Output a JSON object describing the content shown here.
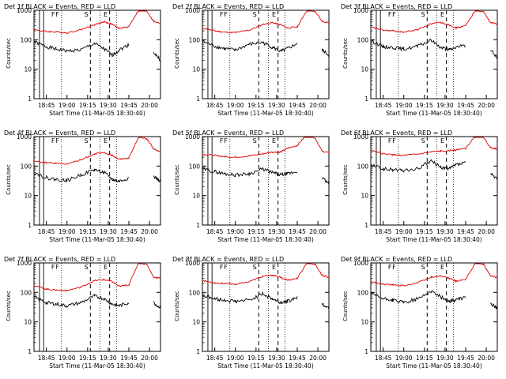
{
  "colors": {
    "events": "#000000",
    "lld": "#e00000",
    "axes": "#000000",
    "background": "#ffffff"
  },
  "shared": {
    "xlabel": "Start Time (11-Mar-05 18:30:40)",
    "ylabel": "Counts/sec",
    "x_ticks": [
      "18:45",
      "19:00",
      "19:15",
      "19:30",
      "19:45",
      "20:00"
    ],
    "y_ticks": [
      "1",
      "10",
      "100",
      "1000"
    ],
    "ylim": [
      1,
      1200
    ],
    "y_scale": "log",
    "time_range": [
      "18:36",
      "20:08"
    ],
    "event_markers": [
      "F",
      "F",
      "S",
      "E"
    ]
  },
  "chart_data": [
    {
      "type": "line",
      "title": "Det 1f BLACK = Events, RED = LLD",
      "x": [
        "18:36",
        "18:45",
        "18:52",
        "19:00",
        "19:10",
        "19:20",
        "19:27",
        "19:33",
        "19:38",
        "19:45",
        "19:52",
        "19:58",
        "20:03",
        "20:08"
      ],
      "series": [
        {
          "name": "Events",
          "values": [
            85,
            58,
            48,
            42,
            45,
            75,
            48,
            30,
            45,
            68,
            null,
            null,
            38,
            20
          ]
        },
        {
          "name": "LLD",
          "values": [
            220,
            190,
            185,
            170,
            220,
            320,
            410,
            330,
            240,
            280,
            1000,
            950,
            420,
            360
          ]
        }
      ]
    },
    {
      "type": "line",
      "title": "Det 2f BLACK = Events, RED = LLD",
      "x": [
        "18:36",
        "18:45",
        "18:52",
        "19:00",
        "19:10",
        "19:20",
        "19:27",
        "19:33",
        "19:38",
        "19:45",
        "19:52",
        "19:58",
        "20:03",
        "20:08"
      ],
      "series": [
        {
          "name": "Events",
          "values": [
            90,
            60,
            50,
            45,
            70,
            80,
            55,
            40,
            50,
            75,
            null,
            null,
            45,
            30
          ]
        },
        {
          "name": "LLD",
          "values": [
            250,
            200,
            180,
            175,
            210,
            330,
            380,
            320,
            250,
            270,
            1000,
            900,
            420,
            380
          ]
        }
      ]
    },
    {
      "type": "line",
      "title": "Det 3f BLACK = Events, RED = LLD",
      "x": [
        "18:36",
        "18:45",
        "18:52",
        "19:00",
        "19:10",
        "19:20",
        "19:27",
        "19:33",
        "19:38",
        "19:45",
        "19:52",
        "19:58",
        "20:03",
        "20:08"
      ],
      "series": [
        {
          "name": "Events",
          "values": [
            95,
            58,
            55,
            48,
            60,
            95,
            55,
            45,
            55,
            65,
            null,
            null,
            45,
            25
          ]
        },
        {
          "name": "LLD",
          "values": [
            270,
            210,
            200,
            180,
            220,
            350,
            380,
            320,
            250,
            300,
            1000,
            900,
            380,
            340
          ]
        }
      ]
    },
    {
      "type": "line",
      "title": "Det 4f BLACK = Events, RED = LLD",
      "x": [
        "18:36",
        "18:45",
        "18:52",
        "19:00",
        "19:10",
        "19:20",
        "19:27",
        "19:33",
        "19:38",
        "19:45",
        "19:52",
        "19:58",
        "20:03",
        "20:08"
      ],
      "series": [
        {
          "name": "Events",
          "values": [
            60,
            40,
            35,
            32,
            50,
            75,
            60,
            35,
            30,
            40,
            null,
            null,
            45,
            30
          ]
        },
        {
          "name": "LLD",
          "values": [
            150,
            130,
            125,
            120,
            160,
            260,
            280,
            230,
            170,
            190,
            950,
            850,
            380,
            300
          ]
        }
      ]
    },
    {
      "type": "line",
      "title": "Det 5f BLACK = Events, RED = LLD",
      "x": [
        "18:36",
        "18:45",
        "18:52",
        "19:00",
        "19:10",
        "19:20",
        "19:27",
        "19:33",
        "19:38",
        "19:45",
        "19:52",
        "19:58",
        "20:03",
        "20:08"
      ],
      "series": [
        {
          "name": "Events",
          "values": [
            80,
            65,
            55,
            50,
            55,
            80,
            60,
            50,
            55,
            65,
            null,
            null,
            40,
            25
          ]
        },
        {
          "name": "LLD",
          "values": [
            250,
            230,
            210,
            200,
            220,
            260,
            300,
            300,
            400,
            500,
            1200,
            900,
            320,
            280
          ]
        }
      ]
    },
    {
      "type": "line",
      "title": "Det 6f BLACK = Events, RED = LLD",
      "x": [
        "18:36",
        "18:45",
        "18:52",
        "19:00",
        "19:10",
        "19:20",
        "19:27",
        "19:33",
        "19:38",
        "19:45",
        "19:52",
        "19:58",
        "20:03",
        "20:08"
      ],
      "series": [
        {
          "name": "Events",
          "values": [
            110,
            80,
            75,
            70,
            80,
            150,
            90,
            80,
            110,
            130,
            null,
            null,
            55,
            35
          ]
        },
        {
          "name": "LLD",
          "values": [
            350,
            260,
            240,
            230,
            250,
            300,
            320,
            330,
            360,
            400,
            1100,
            950,
            420,
            380
          ]
        }
      ]
    },
    {
      "type": "line",
      "title": "Det 7f BLACK = Events, RED = LLD",
      "x": [
        "18:36",
        "18:45",
        "18:52",
        "19:00",
        "19:10",
        "19:20",
        "19:27",
        "19:33",
        "19:38",
        "19:45",
        "19:52",
        "19:58",
        "20:03",
        "20:08"
      ],
      "series": [
        {
          "name": "Events",
          "values": [
            70,
            45,
            40,
            35,
            45,
            75,
            60,
            40,
            35,
            45,
            null,
            null,
            45,
            30
          ]
        },
        {
          "name": "LLD",
          "values": [
            170,
            130,
            120,
            115,
            150,
            250,
            270,
            230,
            160,
            180,
            1000,
            900,
            330,
            300
          ]
        }
      ]
    },
    {
      "type": "line",
      "title": "Det 8f BLACK = Events, RED = LLD",
      "x": [
        "18:36",
        "18:45",
        "18:52",
        "19:00",
        "19:10",
        "19:20",
        "19:27",
        "19:33",
        "19:38",
        "19:45",
        "19:52",
        "19:58",
        "20:03",
        "20:08"
      ],
      "series": [
        {
          "name": "Events",
          "values": [
            80,
            60,
            55,
            50,
            55,
            90,
            60,
            45,
            50,
            70,
            null,
            null,
            40,
            30
          ]
        },
        {
          "name": "LLD",
          "values": [
            250,
            210,
            200,
            190,
            230,
            350,
            380,
            320,
            260,
            300,
            1000,
            900,
            380,
            320
          ]
        }
      ]
    },
    {
      "type": "line",
      "title": "Det 9f BLACK = Events, RED = LLD",
      "x": [
        "18:36",
        "18:45",
        "18:52",
        "19:00",
        "19:10",
        "19:20",
        "19:27",
        "19:33",
        "19:38",
        "19:45",
        "19:52",
        "19:58",
        "20:03",
        "20:08"
      ],
      "series": [
        {
          "name": "Events",
          "values": [
            90,
            60,
            55,
            45,
            60,
            110,
            70,
            50,
            55,
            70,
            null,
            null,
            40,
            30
          ]
        },
        {
          "name": "LLD",
          "values": [
            230,
            190,
            180,
            170,
            210,
            330,
            360,
            300,
            240,
            270,
            1000,
            900,
            360,
            320
          ]
        }
      ]
    }
  ]
}
